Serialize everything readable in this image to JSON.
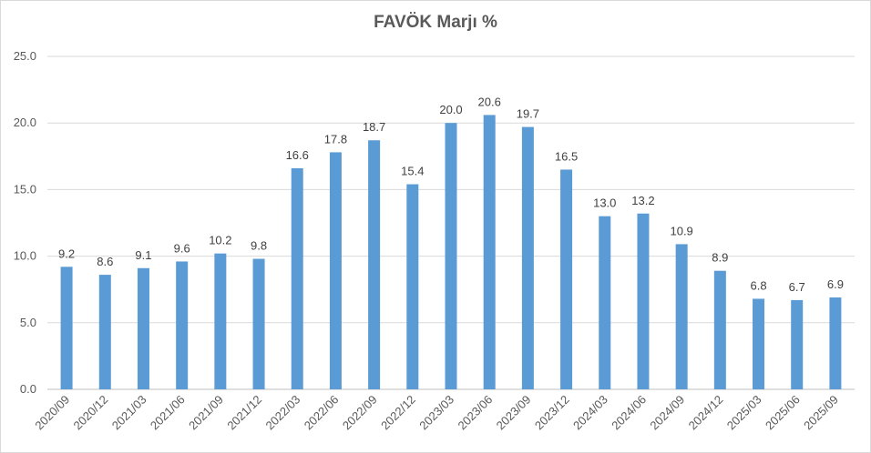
{
  "chart_data": {
    "type": "bar",
    "title": "FAVÖK Marjı %",
    "xlabel": "",
    "ylabel": "",
    "ylim": [
      0,
      25
    ],
    "ytick_labels": [
      "0.0",
      "5.0",
      "10.0",
      "15.0",
      "20.0",
      "25.0"
    ],
    "grid": true,
    "legend": "none",
    "bar_color": "#5b9bd5",
    "categories": [
      "2020/09",
      "2020/12",
      "2021/03",
      "2021/06",
      "2021/09",
      "2021/12",
      "2022/03",
      "2022/06",
      "2022/09",
      "2022/12",
      "2023/03",
      "2023/06",
      "2023/09",
      "2023/12",
      "2024/03",
      "2024/06",
      "2024/09",
      "2024/12",
      "2025/03",
      "2025/06",
      "2025/09"
    ],
    "values": [
      9.2,
      8.6,
      9.1,
      9.6,
      10.2,
      9.8,
      16.6,
      17.8,
      18.7,
      15.4,
      20.0,
      20.6,
      19.7,
      16.5,
      13.0,
      13.2,
      10.9,
      8.9,
      6.8,
      6.7,
      6.9
    ],
    "value_labels": [
      "9.2",
      "8.6",
      "9.1",
      "9.6",
      "10.2",
      "9.8",
      "16.6",
      "17.8",
      "18.7",
      "15.4",
      "20.0",
      "20.6",
      "19.7",
      "16.5",
      "13.0",
      "13.2",
      "10.9",
      "8.9",
      "6.8",
      "6.7",
      "6.9"
    ]
  }
}
